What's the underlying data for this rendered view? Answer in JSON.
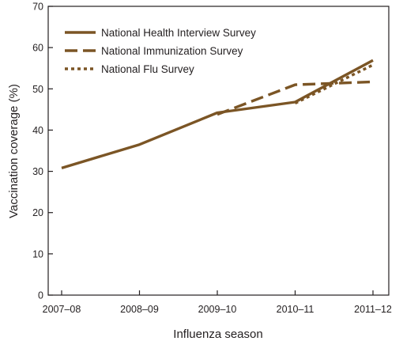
{
  "chart_data": {
    "type": "line",
    "title": "",
    "xlabel": "Influenza season",
    "ylabel": "Vaccination coverage (%)",
    "categories": [
      "2007–08",
      "2008–09",
      "2009–10",
      "2010–11",
      "2011–12"
    ],
    "ylim": [
      0,
      70
    ],
    "yticks": [
      0,
      10,
      20,
      30,
      40,
      50,
      60,
      70
    ],
    "grid": false,
    "legend_position": "top-left",
    "series": [
      {
        "name": "National Health Interview Survey",
        "style": "solid",
        "values": [
          30.8,
          36.5,
          44.2,
          46.8,
          56.9
        ]
      },
      {
        "name": "National Immunization Survey",
        "style": "dashed",
        "values": [
          null,
          null,
          43.8,
          51.0,
          51.7
        ]
      },
      {
        "name": "National Flu Survey",
        "style": "dotted",
        "values": [
          null,
          null,
          null,
          46.5,
          55.8
        ]
      }
    ],
    "line_color": "#7b5525",
    "axis_color": "#231f20"
  }
}
